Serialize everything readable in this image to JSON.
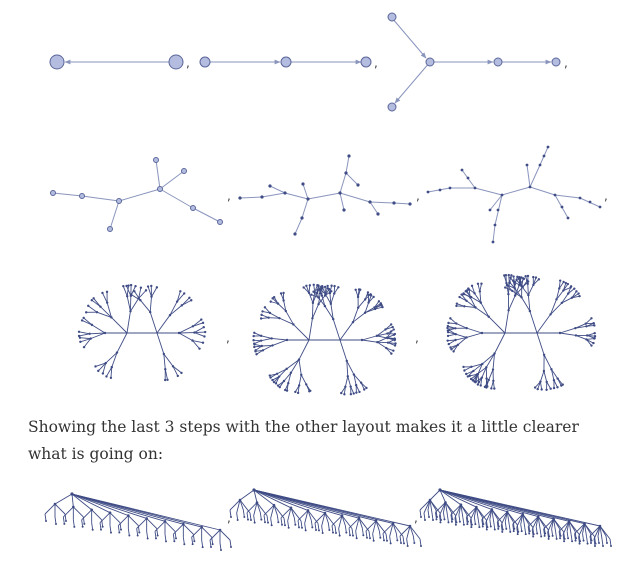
{
  "description": {
    "text": "Showing the last 3 steps with the other layout makes it a little clearer what is going on:"
  },
  "separator": ",",
  "colors": {
    "edge": "#8a95bd",
    "node_fill": "#b4bde0",
    "node_stroke": "#5b669a",
    "tree_edge": "#3f4c85",
    "text": "#333333"
  }
}
